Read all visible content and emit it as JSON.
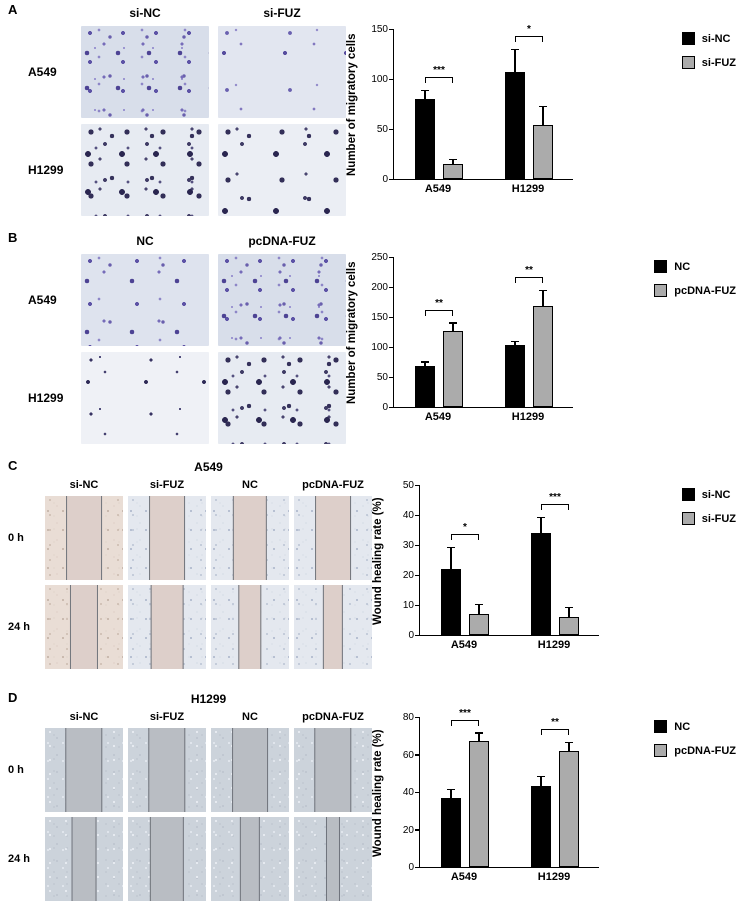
{
  "figure": {
    "panels": [
      {
        "label": "A",
        "col_labels": [
          "si-NC",
          "si-FUZ"
        ],
        "row_labels": [
          "A549",
          "H1299"
        ]
      },
      {
        "label": "B",
        "col_labels": [
          "NC",
          "pcDNA-FUZ"
        ],
        "row_labels": [
          "A549",
          "H1299"
        ]
      },
      {
        "label": "C",
        "title": "A549",
        "col_labels": [
          "si-NC",
          "si-FUZ",
          "NC",
          "pcDNA-FUZ"
        ],
        "row_labels": [
          "0 h",
          "24 h"
        ]
      },
      {
        "label": "D",
        "title": "H1299",
        "col_labels": [
          "si-NC",
          "si-FUZ",
          "NC",
          "pcDNA-FUZ"
        ],
        "row_labels": [
          "0 h",
          "24 h"
        ]
      }
    ]
  },
  "chart_data": [
    {
      "type": "bar",
      "title": "",
      "ylabel": "Number of migratory cells",
      "ylim": [
        0,
        150
      ],
      "yticks": [
        0,
        50,
        100,
        150
      ],
      "categories": [
        "A549",
        "H1299"
      ],
      "series": [
        {
          "name": "si-NC",
          "color": "#000000",
          "values": [
            80,
            107
          ],
          "errors": [
            8,
            22
          ]
        },
        {
          "name": "si-FUZ",
          "color": "#ababab",
          "values": [
            15,
            54
          ],
          "errors": [
            4,
            18
          ]
        }
      ],
      "annotations": [
        {
          "category": "A549",
          "label": "***"
        },
        {
          "category": "H1299",
          "label": "*"
        }
      ],
      "legend_position": "right"
    },
    {
      "type": "bar",
      "title": "",
      "ylabel": "Number of migratory cells",
      "ylim": [
        0,
        250
      ],
      "yticks": [
        0,
        50,
        100,
        150,
        200,
        250
      ],
      "categories": [
        "A549",
        "H1299"
      ],
      "series": [
        {
          "name": "NC",
          "color": "#000000",
          "values": [
            68,
            103
          ],
          "errors": [
            6,
            5
          ]
        },
        {
          "name": "pcDNA-FUZ",
          "color": "#ababab",
          "values": [
            127,
            168
          ],
          "errors": [
            12,
            25
          ]
        }
      ],
      "annotations": [
        {
          "category": "A549",
          "label": "**"
        },
        {
          "category": "H1299",
          "label": "**"
        }
      ],
      "legend_position": "right"
    },
    {
      "type": "bar",
      "title": "",
      "ylabel": "Wound healing rate (%)",
      "ylim": [
        0,
        50
      ],
      "yticks": [
        0,
        10,
        20,
        30,
        40,
        50
      ],
      "categories": [
        "A549",
        "H1299"
      ],
      "series": [
        {
          "name": "si-NC",
          "color": "#000000",
          "values": [
            22,
            34
          ],
          "errors": [
            7,
            5
          ]
        },
        {
          "name": "si-FUZ",
          "color": "#ababab",
          "values": [
            7,
            6
          ],
          "errors": [
            3,
            3
          ]
        }
      ],
      "annotations": [
        {
          "category": "A549",
          "label": "*"
        },
        {
          "category": "H1299",
          "label": "***"
        }
      ],
      "legend_position": "right"
    },
    {
      "type": "bar",
      "title": "",
      "ylabel": "Wound healing rate (%)",
      "ylim": [
        0,
        80
      ],
      "yticks": [
        0,
        20,
        40,
        60,
        80
      ],
      "categories": [
        "A549",
        "H1299"
      ],
      "series": [
        {
          "name": "NC",
          "color": "#000000",
          "values": [
            37,
            43
          ],
          "errors": [
            4,
            5
          ]
        },
        {
          "name": "pcDNA-FUZ",
          "color": "#ababab",
          "values": [
            67,
            62
          ],
          "errors": [
            4,
            4
          ]
        }
      ],
      "annotations": [
        {
          "category": "A549",
          "label": "***"
        },
        {
          "category": "H1299",
          "label": "**"
        }
      ],
      "legend_position": "right"
    }
  ]
}
